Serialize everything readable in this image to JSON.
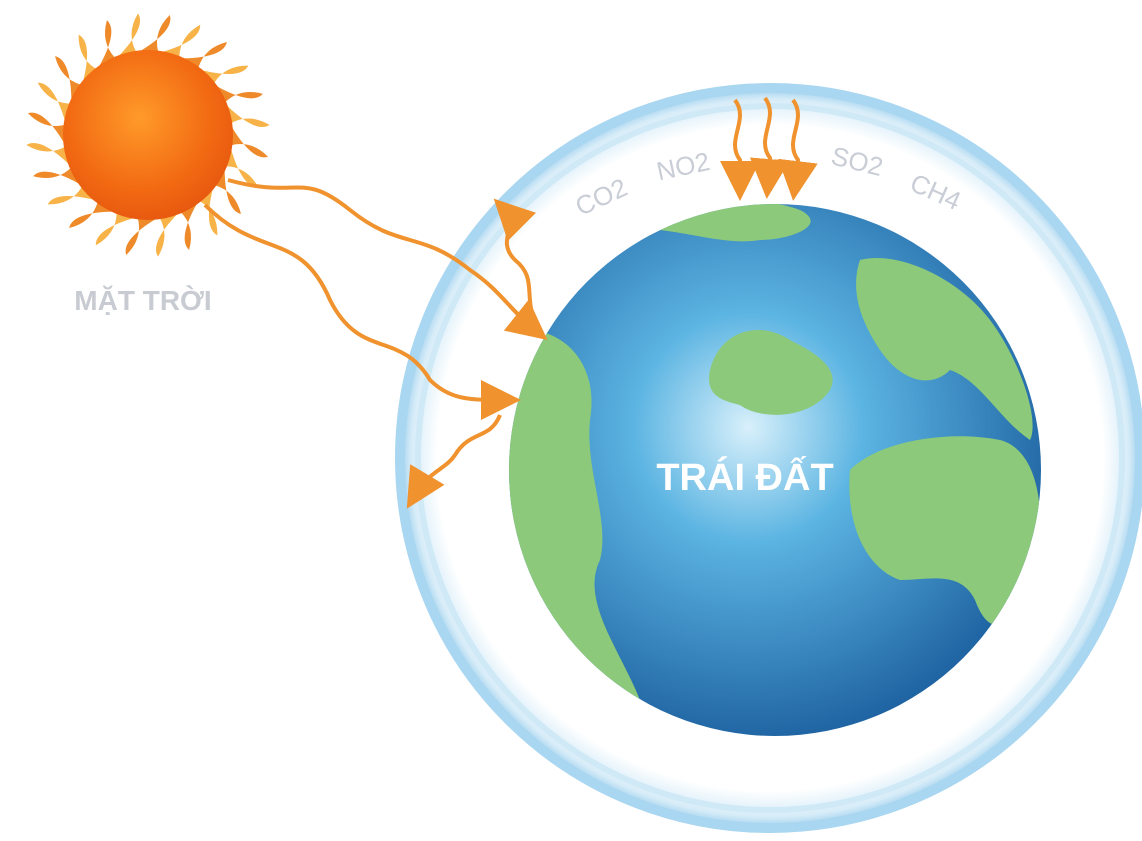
{
  "labels": {
    "sun": "MẶT TRỜI",
    "earth": "TRÁI ĐẤT"
  },
  "gases": [
    "CO2",
    "NO2",
    "SO2",
    "CH4"
  ]
}
